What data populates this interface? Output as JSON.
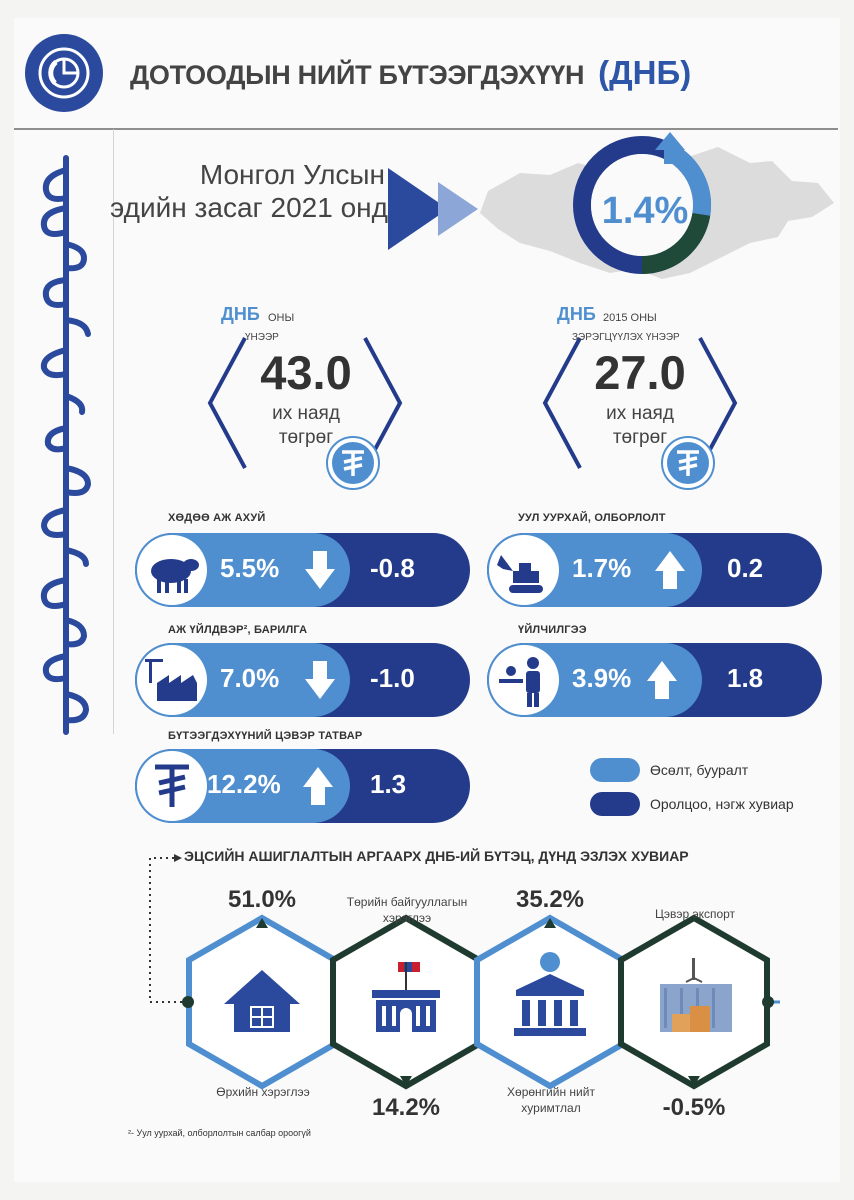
{
  "header": {
    "title_main": "ДОТООДЫН НИЙТ БҮТЭЭГДЭХҮҮН",
    "title_accent": "(ДНБ)",
    "logo_icon": "pie-chart-icon"
  },
  "hero": {
    "line1": "Монгол Улсын",
    "line2": "эдийн засаг 2021 онд",
    "growth_rate": "1.4%",
    "ring_share": 0.79
  },
  "gdp_current": {
    "prefix": "ДНБ",
    "label_a": "ОНЫ",
    "label_b": "ҮНЭЭР",
    "value": "43.0",
    "unit_line1": "их наяд",
    "unit_line2": "төгрөг",
    "icon": "tugrik-icon"
  },
  "gdp_2015": {
    "prefix": "ДНБ",
    "label_a": "2015 ОНЫ",
    "label_b": "ЗЭРЭГЦҮҮЛЭХ ҮНЭЭР",
    "value": "27.0",
    "unit_line1": "их наяд",
    "unit_line2": "төгрөг",
    "icon": "tugrik-icon"
  },
  "sectors": [
    {
      "label": "ХӨДӨӨ АЖ АХУЙ",
      "growth": "5.5%",
      "direction": "down",
      "contribution": "-0.8",
      "icon": "sheep-icon"
    },
    {
      "label": "УУЛ УУРХАЙ, ОЛБОРЛОЛТ",
      "growth": "1.7%",
      "direction": "up",
      "contribution": "0.2",
      "icon": "excavator-icon"
    },
    {
      "label": "АЖ ҮЙЛДВЭР², БАРИЛГА",
      "growth": "7.0%",
      "direction": "down",
      "contribution": "-1.0",
      "icon": "factory-icon"
    },
    {
      "label": "ҮЙЛЧИЛГЭЭ",
      "growth": "3.9%",
      "direction": "up",
      "contribution": "1.8",
      "icon": "service-person-icon"
    },
    {
      "label": "БҮТЭЭГДЭХҮҮНИЙ ЦЭВЭР ТАТВАР",
      "growth": "12.2%",
      "direction": "up",
      "contribution": "1.3",
      "icon": "tugrik-icon"
    }
  ],
  "legend": [
    {
      "label": "Өсөлт, бууралт",
      "color": "#4f8fd0"
    },
    {
      "label": "Оролцоо, нэгж хувиар",
      "color": "#233b8a"
    }
  ],
  "structure": {
    "title": "ЭЦСИЙН АШИГЛАЛТЫН АРГААРХ ДНБ-ИЙ БҮТЭЦ, ДҮНД ЭЗЛЭХ ХУВИАР",
    "items": [
      {
        "value": "51.0%",
        "label": "Өрхийн хэрэглээ",
        "icon": "house-icon"
      },
      {
        "value": "14.2%",
        "label": "Төрийн байгууллагын хэрэглээ",
        "icon": "government-building-icon"
      },
      {
        "value": "35.2%",
        "label": "Хөрөнгийн нийт хуримтлал",
        "icon": "bank-icon"
      },
      {
        "value": "-0.5%",
        "label": "Цэвэр экспорт",
        "icon": "container-crane-icon"
      }
    ],
    "item2_label_l1": "Төрийн байгууллагын",
    "item2_label_l2": "хэрэглээ",
    "item3_label_l1": "Хөрөнгийн нийт",
    "item3_label_l2": "хуримтлал"
  },
  "footnote": "²- Уул уурхай, олборлолтын салбар ороогүй",
  "colors": {
    "dark_blue": "#233b8a",
    "light_blue": "#4f8fd0",
    "dark_green": "#1f4a3a",
    "logo_blue": "#2b4a9e"
  }
}
